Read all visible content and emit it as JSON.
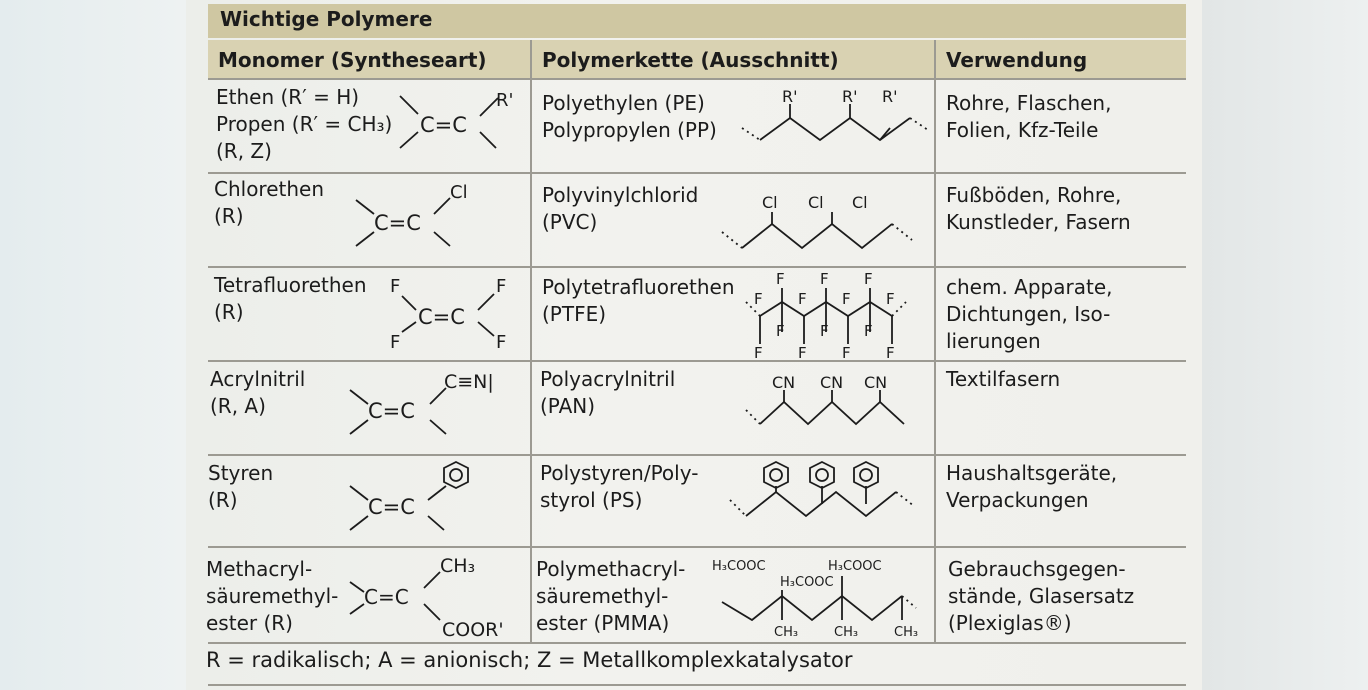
{
  "table": {
    "title": "Wichtige Polymere",
    "headers": {
      "monomer": "Monomer (Syntheseart)",
      "chain": "Polymerkette (Ausschnitt)",
      "use": "Verwendung"
    },
    "rows": [
      {
        "monomer_text": "Ethen (R′ = H)\nPropen (R′ = CH₃)\n(R, Z)",
        "polymer_text": "Polyethylen (PE)\nPolypropylen (PP)",
        "use_text": "Rohre, Flaschen,\nFolien, Kfz-Teile",
        "monomer_substituent": "R'",
        "chain_substituent": "R'"
      },
      {
        "monomer_text": "Chlorethen\n(R)",
        "polymer_text": "Polyvinylchlorid\n(PVC)",
        "use_text": "Fußböden, Rohre,\nKunstleder, Fasern",
        "monomer_substituent": "Cl",
        "chain_substituent": "Cl"
      },
      {
        "monomer_text": "Tetrafluorethen\n(R)",
        "polymer_text": "Polytetrafluorethen\n(PTFE)",
        "use_text": "chem. Apparate,\nDichtungen, Iso-\nlierungen",
        "monomer_substituent": "F",
        "chain_substituent": "F"
      },
      {
        "monomer_text": "Acrylnitril\n(R, A)",
        "polymer_text": "Polyacrylnitril\n(PAN)",
        "use_text": "Textilfasern",
        "monomer_substituent": "C≡N|",
        "chain_substituent": "CN"
      },
      {
        "monomer_text": "Styren\n(R)",
        "polymer_text": "Polystyren/Poly-\nstyrol (PS)",
        "use_text": "Haushaltsgeräte,\nVerpackungen"
      },
      {
        "monomer_text": "Methacryl-\nsäuremethyl-\nester (R)",
        "polymer_text": "Polymethacryl-\nsäuremethyl-\nester (PMMA)",
        "use_text": "Gebrauchsgegen-\nstände, Glasersatz\n(Plexiglas®)",
        "monomer_substituent_top": "CH₃",
        "monomer_substituent_bottom": "COOR'",
        "chain_substituent_top": "H₃COOC",
        "chain_substituent_bottom": "CH₃"
      }
    ],
    "double_bond": "C=C",
    "carbon": "C",
    "footnote": "R = radikalisch; A = anionisch; Z = Metallkomplexkatalysator"
  }
}
